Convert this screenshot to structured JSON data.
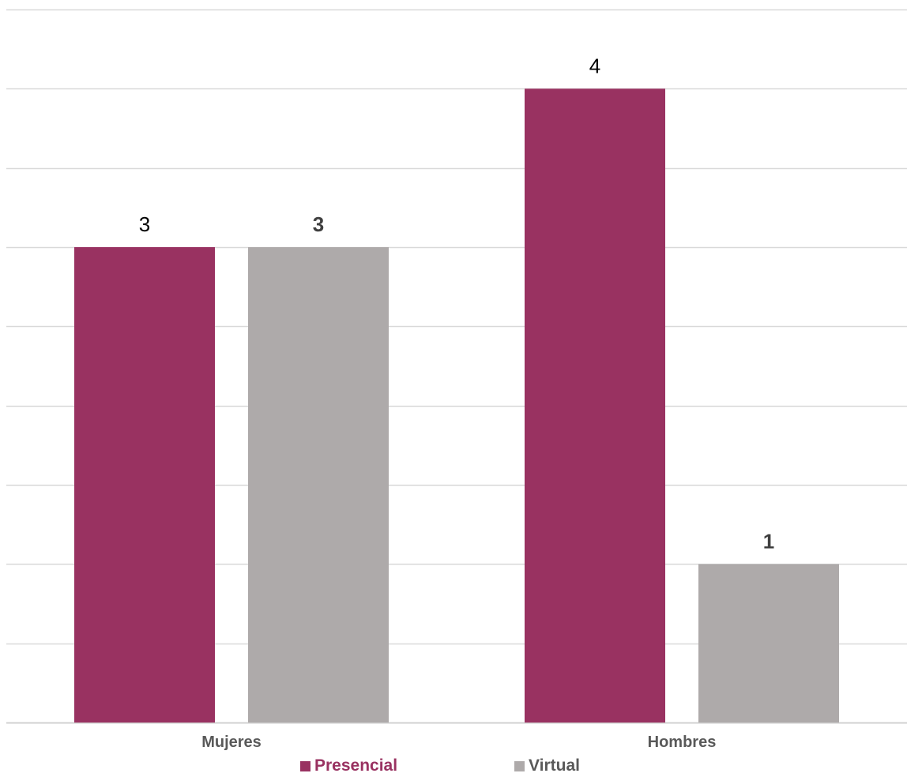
{
  "chart_data": {
    "type": "bar",
    "categories": [
      "Mujeres",
      "Hombres"
    ],
    "series": [
      {
        "name": "Presencial",
        "values": [
          3,
          4
        ],
        "color": "#993261"
      },
      {
        "name": "Virtual",
        "values": [
          3,
          1
        ],
        "color": "#aeaaaa"
      }
    ],
    "ylim": [
      0,
      4.5
    ],
    "grid": true,
    "legend": "bottom",
    "value_labels_bold": [
      [
        false,
        true
      ],
      [
        false,
        true
      ]
    ],
    "legend_text_colors": [
      "#993261",
      "#595959"
    ]
  }
}
